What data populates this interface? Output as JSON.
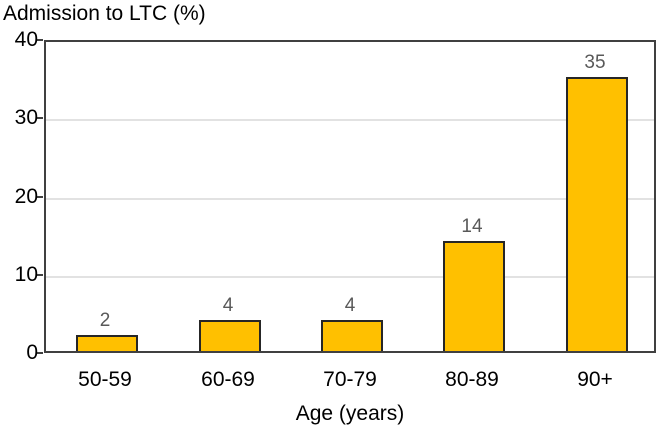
{
  "chart_data": {
    "type": "bar",
    "title": "Admission to LTC (%)",
    "xlabel": "Age (years)",
    "ylabel": "Admission to LTC (%)",
    "categories": [
      "50-59",
      "60-69",
      "70-79",
      "80-89",
      "90+"
    ],
    "values": [
      2,
      4,
      4,
      14,
      35
    ],
    "ylim": [
      0,
      40
    ],
    "yticks": [
      0,
      10,
      20,
      30,
      40
    ],
    "grid": "horizontal",
    "legend": "none",
    "bar_color": "#FFC000",
    "bar_border_color": "#262626",
    "value_label_color": "#595959",
    "axis_color": "#404040",
    "gridline_color": "#e2e2e2",
    "text_color": "#000000",
    "background_color": "#ffffff"
  }
}
